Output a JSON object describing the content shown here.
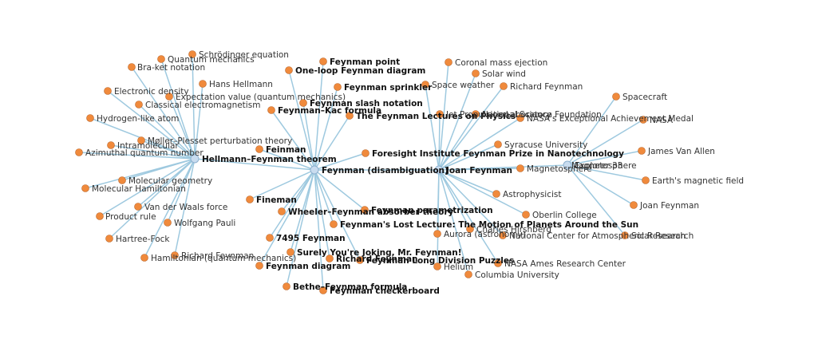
{
  "graph": {
    "hubs": [
      {
        "id": "hellmann",
        "label": "Hellmann–Feynman theorem",
        "bold": true
      },
      {
        "id": "feynman",
        "label": "Feynman (disambiguation)",
        "bold": true
      },
      {
        "id": "joan",
        "label": "Joan Feynman",
        "bold": true
      },
      {
        "id": "explorer",
        "label": "Explorer 33",
        "bold": false
      }
    ],
    "leaves": [
      {
        "hub": "hellmann",
        "label": "Schrödinger equation",
        "bold": false
      },
      {
        "hub": "hellmann",
        "label": "Quantum mechanics",
        "bold": false
      },
      {
        "hub": "hellmann",
        "label": "Bra-ket notation",
        "bold": false
      },
      {
        "hub": "hellmann",
        "label": "Hans Hellmann",
        "bold": false
      },
      {
        "hub": "hellmann",
        "label": "Electronic density",
        "bold": false
      },
      {
        "hub": "hellmann",
        "label": "Expectation value (quantum mechanics)",
        "bold": false
      },
      {
        "hub": "hellmann",
        "label": "Classical electromagnetism",
        "bold": false
      },
      {
        "hub": "hellmann",
        "label": "Hydrogen-like atom",
        "bold": false
      },
      {
        "hub": "hellmann",
        "label": "Møller–Plesset perturbation theory",
        "bold": false
      },
      {
        "hub": "hellmann",
        "label": "Intramolecular",
        "bold": false
      },
      {
        "hub": "hellmann",
        "label": "Azimuthal quantum number",
        "bold": false
      },
      {
        "hub": "hellmann",
        "label": "Molecular geometry",
        "bold": false
      },
      {
        "hub": "hellmann",
        "label": "Molecular Hamiltonian",
        "bold": false
      },
      {
        "hub": "hellmann",
        "label": "Van der Waals force",
        "bold": false
      },
      {
        "hub": "hellmann",
        "label": "Product rule",
        "bold": false
      },
      {
        "hub": "hellmann",
        "label": "Wolfgang Pauli",
        "bold": false
      },
      {
        "hub": "hellmann",
        "label": "Hartree-Fock",
        "bold": false
      },
      {
        "hub": "hellmann",
        "label": "Richard Feynman",
        "bold": false
      },
      {
        "hub": "hellmann",
        "label": "Hamiltonian (quantum mechanics)",
        "bold": false
      },
      {
        "hub": "feynman",
        "label": "Feynman point",
        "bold": true
      },
      {
        "hub": "feynman",
        "label": "One-loop Feynman diagram",
        "bold": true
      },
      {
        "hub": "feynman",
        "label": "Feynman sprinkler",
        "bold": true
      },
      {
        "hub": "feynman",
        "label": "Feynman slash notation",
        "bold": true
      },
      {
        "hub": "feynman",
        "label": "Feynman–Kac formula",
        "bold": true
      },
      {
        "hub": "feynman",
        "label": "The Feynman Lectures on Physics",
        "bold": true
      },
      {
        "hub": "feynman",
        "label": "Feinman",
        "bold": true
      },
      {
        "hub": "feynman",
        "label": "Foresight Institute Feynman Prize in Nanotechnology",
        "bold": true
      },
      {
        "hub": "feynman",
        "label": "Fineman",
        "bold": true
      },
      {
        "hub": "feynman",
        "label": "Wheeler–Feynman absorber theory",
        "bold": true
      },
      {
        "hub": "feynman",
        "label": "Feynman parametrization",
        "bold": true
      },
      {
        "hub": "feynman",
        "label": "Feynman's Lost Lecture: The Motion of Planets Around the Sun",
        "bold": true
      },
      {
        "hub": "feynman",
        "label": "7495 Feynman",
        "bold": true
      },
      {
        "hub": "feynman",
        "label": "Surely You're Joking, Mr. Feynman!",
        "bold": true
      },
      {
        "hub": "feynman",
        "label": "Richard Feynman",
        "bold": true
      },
      {
        "hub": "feynman",
        "label": "Feynman Long Division Puzzles",
        "bold": true
      },
      {
        "hub": "feynman",
        "label": "Feynman diagram",
        "bold": true
      },
      {
        "hub": "feynman",
        "label": "Bethe–Feynman formula",
        "bold": true
      },
      {
        "hub": "feynman",
        "label": "Feynman checkerboard",
        "bold": true
      },
      {
        "hub": "joan",
        "label": "Coronal mass ejection",
        "bold": false
      },
      {
        "hub": "joan",
        "label": "Solar wind",
        "bold": false
      },
      {
        "hub": "joan",
        "label": "Space weather",
        "bold": false
      },
      {
        "hub": "joan",
        "label": "Richard Feynman",
        "bold": false
      },
      {
        "hub": "joan",
        "label": "Jet Propulsion Laboratory",
        "bold": false
      },
      {
        "hub": "joan",
        "label": "National Science Foundation",
        "bold": false
      },
      {
        "hub": "joan",
        "label": "NASA's Exceptional Achievement Medal",
        "bold": false
      },
      {
        "hub": "joan",
        "label": "Syracuse University",
        "bold": false
      },
      {
        "hub": "joan",
        "label": "Magnetosphere",
        "bold": false
      },
      {
        "hub": "joan",
        "label": "Astrophysicist",
        "bold": false
      },
      {
        "hub": "joan",
        "label": "Oberlin College",
        "bold": false
      },
      {
        "hub": "joan",
        "label": "Charles Hirshberg",
        "bold": false
      },
      {
        "hub": "joan",
        "label": "Aurora (astronomy)",
        "bold": false
      },
      {
        "hub": "joan",
        "label": "National Center for Atmospheric Research",
        "bold": false
      },
      {
        "hub": "joan",
        "label": "NASA Ames Research Center",
        "bold": false
      },
      {
        "hub": "joan",
        "label": "Helium",
        "bold": false
      },
      {
        "hub": "joan",
        "label": "Columbia University",
        "bold": false
      },
      {
        "hub": "explorer",
        "label": "Spacecraft",
        "bold": false
      },
      {
        "hub": "explorer",
        "label": "NASA",
        "bold": false
      },
      {
        "hub": "explorer",
        "label": "James Van Allen",
        "bold": false
      },
      {
        "hub": "explorer",
        "label": "Earth's magnetic field",
        "bold": false
      },
      {
        "hub": "explorer",
        "label": "Joan Feynman",
        "bold": false
      },
      {
        "hub": "explorer",
        "label": "Solar Research",
        "bold": false
      },
      {
        "hub": "explorer",
        "label": "Magnetosphere",
        "bold": false
      }
    ],
    "hub_links": [
      [
        "hellmann",
        "feynman"
      ],
      [
        "feynman",
        "joan"
      ],
      [
        "joan",
        "explorer"
      ]
    ],
    "colors": {
      "edge": "#9ec9df",
      "leaf": "#f08a3c",
      "hub": "#c9dcef"
    }
  }
}
